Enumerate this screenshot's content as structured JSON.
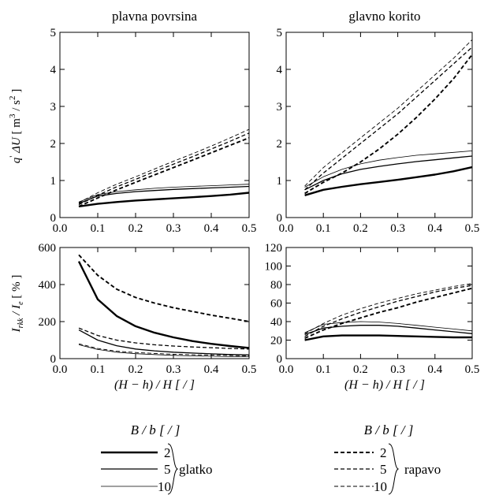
{
  "column_titles": [
    "plavna povrsina",
    "glavno korito"
  ],
  "ylabel_top": "q' ΔU [ m³ / s² ]",
  "ylabel_bottom": "I_rkk / I_e [ % ]",
  "xlabel": "(H − h) / H  [ / ]",
  "legend": {
    "header": "B / b [ / ]",
    "smooth_group_label": "glatko",
    "rough_group_label": "rapavo",
    "entries": [
      "2",
      "5",
      "10"
    ]
  },
  "styles": {
    "smooth": {
      "dash": "",
      "widths": [
        2.4,
        1.3,
        0.8
      ]
    },
    "rough": {
      "dash": "5,3",
      "widths": [
        1.9,
        1.3,
        0.9
      ]
    }
  },
  "chart_data": [
    {
      "type": "line",
      "title": "plavna povrsina",
      "xlabel": "",
      "ylabel": "q' ΔU [ m³ / s² ]",
      "xlim": [
        0,
        0.5
      ],
      "ylim": [
        0,
        5
      ],
      "xticks": [
        "0.0",
        "0.1",
        "0.2",
        "0.3",
        "0.4",
        "0.5"
      ],
      "yticks": [
        "0",
        "1",
        "2",
        "3",
        "4",
        "5"
      ],
      "x": [
        0.05,
        0.1,
        0.15,
        0.2,
        0.25,
        0.3,
        0.35,
        0.4,
        0.45,
        0.5
      ],
      "series": [
        {
          "name": "2",
          "group": "glatko",
          "values": [
            0.3,
            0.37,
            0.42,
            0.46,
            0.49,
            0.52,
            0.55,
            0.58,
            0.62,
            0.67
          ]
        },
        {
          "name": "5",
          "group": "glatko",
          "values": [
            0.38,
            0.58,
            0.65,
            0.7,
            0.73,
            0.76,
            0.78,
            0.8,
            0.82,
            0.84
          ]
        },
        {
          "name": "10",
          "group": "glatko",
          "values": [
            0.42,
            0.62,
            0.7,
            0.75,
            0.79,
            0.82,
            0.84,
            0.86,
            0.88,
            0.9
          ]
        },
        {
          "name": "2",
          "group": "rapavo",
          "values": [
            0.3,
            0.53,
            0.75,
            0.95,
            1.15,
            1.35,
            1.55,
            1.75,
            1.95,
            2.15
          ]
        },
        {
          "name": "5",
          "group": "rapavo",
          "values": [
            0.35,
            0.6,
            0.83,
            1.03,
            1.24,
            1.44,
            1.64,
            1.85,
            2.06,
            2.28
          ]
        },
        {
          "name": "10",
          "group": "rapavo",
          "values": [
            0.4,
            0.67,
            0.9,
            1.1,
            1.31,
            1.52,
            1.72,
            1.93,
            2.15,
            2.38
          ]
        }
      ]
    },
    {
      "type": "line",
      "title": "glavno korito",
      "xlabel": "",
      "ylabel": "",
      "xlim": [
        0,
        0.5
      ],
      "ylim": [
        0,
        5
      ],
      "xticks": [
        "0.0",
        "0.1",
        "0.2",
        "0.3",
        "0.4",
        "0.5"
      ],
      "yticks": [
        "0",
        "1",
        "2",
        "3",
        "4",
        "5"
      ],
      "x": [
        0.05,
        0.1,
        0.15,
        0.2,
        0.25,
        0.3,
        0.35,
        0.4,
        0.45,
        0.5
      ],
      "series": [
        {
          "name": "2",
          "group": "glatko",
          "values": [
            0.6,
            0.75,
            0.83,
            0.9,
            0.96,
            1.02,
            1.09,
            1.16,
            1.25,
            1.36
          ]
        },
        {
          "name": "5",
          "group": "glatko",
          "values": [
            0.75,
            1.0,
            1.18,
            1.3,
            1.38,
            1.45,
            1.51,
            1.56,
            1.61,
            1.66
          ]
        },
        {
          "name": "10",
          "group": "glatko",
          "values": [
            0.82,
            1.1,
            1.3,
            1.45,
            1.55,
            1.62,
            1.68,
            1.72,
            1.76,
            1.8
          ]
        },
        {
          "name": "2",
          "group": "rapavo",
          "values": [
            0.65,
            0.95,
            1.2,
            1.5,
            1.85,
            2.25,
            2.7,
            3.2,
            3.75,
            4.4
          ]
        },
        {
          "name": "5",
          "group": "rapavo",
          "values": [
            0.75,
            1.2,
            1.6,
            2.0,
            2.4,
            2.8,
            3.25,
            3.7,
            4.15,
            4.6
          ]
        },
        {
          "name": "10",
          "group": "rapavo",
          "values": [
            0.85,
            1.35,
            1.75,
            2.15,
            2.55,
            2.95,
            3.4,
            3.85,
            4.3,
            4.8
          ]
        }
      ]
    },
    {
      "type": "line",
      "title": "",
      "xlabel": "(H − h) / H  [ / ]",
      "ylabel": "I_rkk / I_e [ % ]",
      "xlim": [
        0,
        0.5
      ],
      "ylim": [
        0,
        600
      ],
      "xticks": [
        "0.0",
        "0.1",
        "0.2",
        "0.3",
        "0.4",
        "0.5"
      ],
      "yticks": [
        "0",
        "200",
        "400",
        "600"
      ],
      "x": [
        0.05,
        0.1,
        0.15,
        0.2,
        0.25,
        0.3,
        0.35,
        0.4,
        0.45,
        0.5
      ],
      "series": [
        {
          "name": "2",
          "group": "glatko",
          "values": [
            525,
            320,
            230,
            175,
            140,
            115,
            95,
            80,
            68,
            58
          ]
        },
        {
          "name": "5",
          "group": "glatko",
          "values": [
            155,
            100,
            70,
            52,
            42,
            35,
            30,
            26,
            22,
            20
          ]
        },
        {
          "name": "10",
          "group": "glatko",
          "values": [
            75,
            50,
            35,
            27,
            22,
            18,
            15,
            13,
            11,
            10
          ]
        },
        {
          "name": "2",
          "group": "rapavo",
          "values": [
            560,
            450,
            375,
            330,
            300,
            275,
            255,
            235,
            218,
            200
          ]
        },
        {
          "name": "5",
          "group": "rapavo",
          "values": [
            165,
            125,
            100,
            85,
            75,
            68,
            63,
            59,
            55,
            52
          ]
        },
        {
          "name": "10",
          "group": "rapavo",
          "values": [
            80,
            55,
            40,
            33,
            28,
            24,
            21,
            19,
            17,
            15
          ]
        }
      ]
    },
    {
      "type": "line",
      "title": "",
      "xlabel": "(H − h) / H  [ / ]",
      "ylabel": "",
      "xlim": [
        0,
        0.5
      ],
      "ylim": [
        0,
        120
      ],
      "xticks": [
        "0.0",
        "0.1",
        "0.2",
        "0.3",
        "0.4",
        "0.5"
      ],
      "yticks": [
        "0",
        "20",
        "40",
        "60",
        "80",
        "100",
        "120"
      ],
      "x": [
        0.05,
        0.1,
        0.15,
        0.2,
        0.25,
        0.3,
        0.35,
        0.4,
        0.45,
        0.5
      ],
      "series": [
        {
          "name": "2",
          "group": "glatko",
          "values": [
            20,
            24,
            25,
            25,
            25,
            24.5,
            24,
            23.5,
            23,
            23
          ]
        },
        {
          "name": "5",
          "group": "glatko",
          "values": [
            26,
            33,
            35,
            36,
            36,
            35,
            33,
            31,
            29,
            27
          ]
        },
        {
          "name": "10",
          "group": "glatko",
          "values": [
            28,
            37,
            39,
            40,
            39.5,
            38,
            36,
            34,
            32,
            30
          ]
        },
        {
          "name": "2",
          "group": "rapavo",
          "values": [
            22,
            31,
            38,
            44,
            50,
            55,
            61,
            66,
            71,
            76
          ]
        },
        {
          "name": "5",
          "group": "rapavo",
          "values": [
            24,
            35,
            43,
            50,
            56,
            62,
            67,
            72,
            76,
            79
          ]
        },
        {
          "name": "10",
          "group": "rapavo",
          "values": [
            27,
            38,
            47,
            54,
            60,
            65,
            70,
            74,
            78,
            81
          ]
        }
      ]
    }
  ]
}
